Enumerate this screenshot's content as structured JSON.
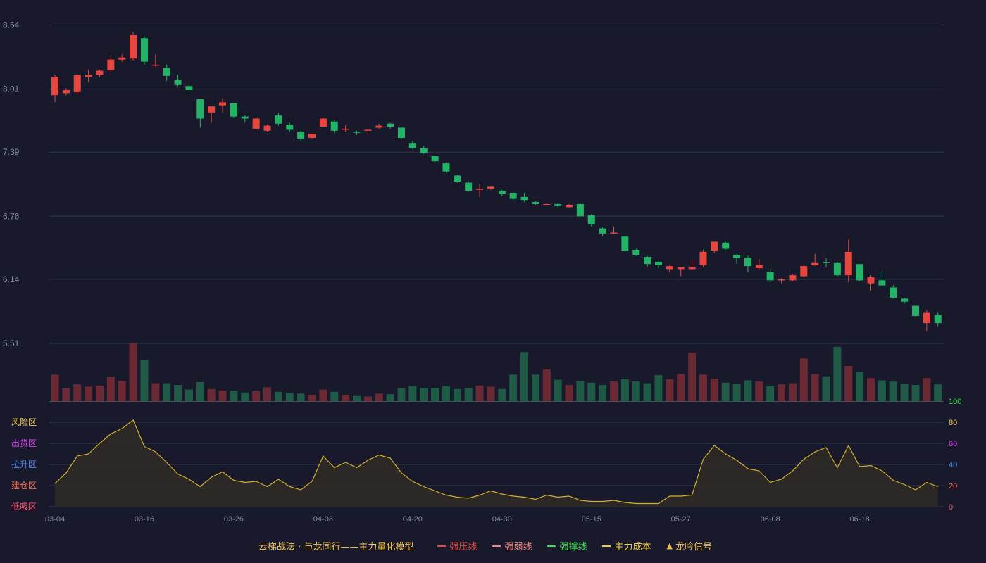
{
  "chart_data": {
    "type": "candlestick",
    "price_axis": {
      "ticks": [
        "8.64",
        "8.01",
        "7.39",
        "6.76",
        "6.14",
        "5.51"
      ]
    },
    "volume_axis": {
      "ticks": [
        "100"
      ]
    },
    "indicator_axis": {
      "ticks": [
        "80",
        "60",
        "40",
        "20",
        "0"
      ],
      "zones": [
        "风险区",
        "出货区",
        "拉升区",
        "建仓区",
        "低吸区"
      ]
    },
    "x_ticks": [
      "03-04",
      "03-16",
      "03-26",
      "04-08",
      "04-20",
      "04-30",
      "05-15",
      "05-27",
      "06-08",
      "06-18"
    ],
    "candles": [
      [
        7.95,
        8.13,
        8.15,
        7.88
      ],
      [
        7.97,
        8.0,
        8.02,
        7.95
      ],
      [
        7.98,
        8.15,
        8.15,
        7.96
      ],
      [
        8.13,
        8.15,
        8.2,
        8.08
      ],
      [
        8.15,
        8.19,
        8.2,
        8.13
      ],
      [
        8.2,
        8.3,
        8.34,
        8.17
      ],
      [
        8.3,
        8.32,
        8.35,
        8.28
      ],
      [
        8.31,
        8.54,
        8.57,
        8.29
      ],
      [
        8.51,
        8.28,
        8.53,
        8.25
      ],
      [
        8.25,
        8.25,
        8.35,
        8.23
      ],
      [
        8.22,
        8.14,
        8.25,
        8.09
      ],
      [
        8.1,
        8.05,
        8.15,
        8.04
      ],
      [
        8.04,
        8.0,
        8.06,
        7.98
      ],
      [
        7.91,
        7.72,
        7.91,
        7.63
      ],
      [
        7.78,
        7.84,
        7.84,
        7.68
      ],
      [
        7.85,
        7.88,
        7.92,
        7.78
      ],
      [
        7.87,
        7.74,
        7.87,
        7.73
      ],
      [
        7.74,
        7.72,
        7.75,
        7.68
      ],
      [
        7.62,
        7.72,
        7.74,
        7.6
      ],
      [
        7.6,
        7.65,
        7.66,
        7.59
      ],
      [
        7.75,
        7.67,
        7.78,
        7.65
      ],
      [
        7.66,
        7.61,
        7.68,
        7.59
      ],
      [
        7.59,
        7.52,
        7.6,
        7.5
      ],
      [
        7.53,
        7.57,
        7.57,
        7.52
      ],
      [
        7.64,
        7.72,
        7.73,
        7.64
      ],
      [
        7.69,
        7.6,
        7.7,
        7.58
      ],
      [
        7.61,
        7.62,
        7.65,
        7.59
      ],
      [
        7.59,
        7.58,
        7.6,
        7.56
      ],
      [
        7.6,
        7.61,
        7.61,
        7.56
      ],
      [
        7.63,
        7.65,
        7.67,
        7.62
      ],
      [
        7.67,
        7.64,
        7.68,
        7.62
      ],
      [
        7.63,
        7.53,
        7.64,
        7.52
      ],
      [
        7.48,
        7.43,
        7.5,
        7.42
      ],
      [
        7.43,
        7.38,
        7.45,
        7.37
      ],
      [
        7.35,
        7.3,
        7.36,
        7.29
      ],
      [
        7.28,
        7.2,
        7.29,
        7.19
      ],
      [
        7.16,
        7.1,
        7.17,
        7.09
      ],
      [
        7.09,
        7.01,
        7.1,
        7.0
      ],
      [
        7.03,
        7.03,
        7.08,
        6.95
      ],
      [
        7.03,
        7.05,
        7.06,
        7.02
      ],
      [
        7.01,
        6.98,
        7.02,
        6.96
      ],
      [
        6.99,
        6.93,
        7.0,
        6.9
      ],
      [
        6.95,
        6.92,
        6.99,
        6.9
      ],
      [
        6.9,
        6.88,
        6.91,
        6.87
      ],
      [
        6.88,
        6.88,
        6.89,
        6.87
      ],
      [
        6.88,
        6.86,
        6.89,
        6.85
      ],
      [
        6.85,
        6.87,
        6.88,
        6.84
      ],
      [
        6.88,
        6.76,
        6.89,
        6.76
      ],
      [
        6.77,
        6.68,
        6.78,
        6.66
      ],
      [
        6.64,
        6.59,
        6.65,
        6.56
      ],
      [
        6.59,
        6.6,
        6.66,
        6.59
      ],
      [
        6.56,
        6.42,
        6.57,
        6.41
      ],
      [
        6.43,
        6.38,
        6.44,
        6.37
      ],
      [
        6.36,
        6.29,
        6.37,
        6.26
      ],
      [
        6.31,
        6.28,
        6.32,
        6.25
      ],
      [
        6.24,
        6.27,
        6.28,
        6.21
      ],
      [
        6.24,
        6.26,
        6.26,
        6.17
      ],
      [
        6.24,
        6.26,
        6.34,
        6.23
      ],
      [
        6.28,
        6.41,
        6.43,
        6.26
      ],
      [
        6.42,
        6.51,
        6.51,
        6.4
      ],
      [
        6.5,
        6.44,
        6.51,
        6.43
      ],
      [
        6.38,
        6.35,
        6.39,
        6.29
      ],
      [
        6.35,
        6.27,
        6.37,
        6.21
      ],
      [
        6.25,
        6.28,
        6.34,
        6.23
      ],
      [
        6.21,
        6.13,
        6.25,
        6.11
      ],
      [
        6.13,
        6.14,
        6.15,
        6.1
      ],
      [
        6.13,
        6.18,
        6.19,
        6.12
      ],
      [
        6.17,
        6.27,
        6.28,
        6.16
      ],
      [
        6.28,
        6.3,
        6.39,
        6.27
      ],
      [
        6.31,
        6.3,
        6.35,
        6.26
      ],
      [
        6.3,
        6.18,
        6.31,
        6.17
      ],
      [
        6.18,
        6.41,
        6.53,
        6.11
      ],
      [
        6.29,
        6.13,
        6.29,
        6.12
      ],
      [
        6.1,
        6.16,
        6.18,
        6.03
      ],
      [
        6.13,
        6.08,
        6.22,
        6.07
      ],
      [
        6.06,
        5.96,
        6.08,
        5.95
      ],
      [
        5.95,
        5.92,
        5.96,
        5.9
      ],
      [
        5.88,
        5.78,
        5.88,
        5.77
      ],
      [
        5.71,
        5.81,
        5.84,
        5.63
      ],
      [
        5.79,
        5.71,
        5.81,
        5.68
      ]
    ],
    "volume": [
      46,
      22,
      29,
      25,
      27,
      42,
      35,
      100,
      71,
      31,
      31,
      28,
      20,
      33,
      21,
      18,
      18,
      15,
      17,
      24,
      16,
      14,
      13,
      11,
      20,
      16,
      11,
      10,
      8,
      13,
      12,
      22,
      26,
      23,
      23,
      26,
      21,
      22,
      27,
      25,
      21,
      46,
      85,
      46,
      55,
      37,
      28,
      35,
      32,
      28,
      34,
      38,
      34,
      31,
      45,
      38,
      47,
      84,
      46,
      39,
      32,
      30,
      36,
      34,
      27,
      29,
      31,
      74,
      47,
      43,
      94,
      61,
      51,
      40,
      36,
      34,
      30,
      28,
      40,
      29
    ],
    "indicator": [
      22,
      32,
      48,
      50,
      60,
      69,
      74,
      82,
      57,
      52,
      42,
      31,
      26,
      19,
      28,
      33,
      25,
      23,
      24,
      19,
      26,
      19,
      16,
      24,
      48,
      37,
      42,
      37,
      44,
      49,
      46,
      32,
      24,
      19,
      15,
      11,
      9,
      8,
      11,
      15,
      12,
      10,
      9,
      7,
      11,
      9,
      10,
      6,
      5,
      5,
      6,
      4,
      3,
      3,
      3,
      10,
      10,
      11,
      45,
      58,
      50,
      44,
      36,
      34,
      23,
      26,
      34,
      45,
      52,
      56,
      37,
      58,
      38,
      39,
      34,
      25,
      21,
      16,
      23,
      19
    ],
    "legend": {
      "caption": "云梯战法 · 与龙同行——主力量化模型",
      "items": [
        {
          "label": "强压线",
          "color": "#e8453c",
          "style": "solid"
        },
        {
          "label": "强弱线",
          "color": "#f08080",
          "style": "dashed"
        },
        {
          "label": "强撑线",
          "color": "#38e050",
          "style": "solid"
        },
        {
          "label": "主力成本",
          "color": "#f2d035",
          "style": "dashed"
        },
        {
          "label": "龙吟信号",
          "color": "#f2c14e",
          "style": "triangle"
        }
      ]
    },
    "colors": {
      "up": "#e8453c",
      "down": "#21b366",
      "vol_up": "#6b2a33",
      "vol_down": "#1e5a45",
      "indicator_line": "#d4b02a",
      "indicator_fill": "#2e2a26",
      "grid": "#34364a",
      "axis_text": "#8a8d9e",
      "zone_colors": [
        "#f2c14e",
        "#e040fb",
        "#4f8ef7",
        "#ff6a4d",
        "#ff4d6a"
      ],
      "right_tick_colors": [
        "#f2c14e",
        "#e040fb",
        "#4f8ef7",
        "#ff6a4d",
        "#ff4d6a"
      ],
      "volume_tick_color": "#38e050"
    }
  }
}
